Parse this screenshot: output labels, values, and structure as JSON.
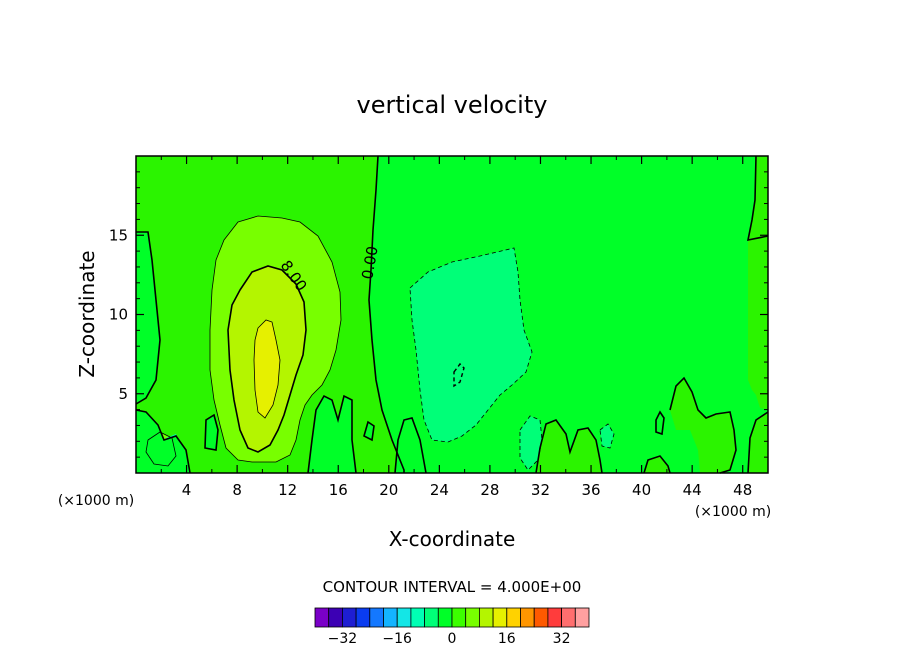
{
  "chart_data": {
    "type": "contour",
    "title": "vertical velocity",
    "xlabel": "X-coordinate",
    "ylabel": "Z-coordinate",
    "x_units_left": "(×1000 m)",
    "x_units_right": "(×1000 m)",
    "xlim": [
      0,
      50
    ],
    "ylim": [
      0,
      20
    ],
    "x_ticks": [
      4,
      8,
      12,
      16,
      20,
      24,
      28,
      32,
      36,
      40,
      44,
      48
    ],
    "y_ticks": [
      5,
      10,
      15
    ],
    "contour_interval_text": "CONTOUR INTERVAL = 4.000E+00",
    "contour_labels": [
      "8.00",
      "0.00"
    ],
    "colorbar": {
      "colors": [
        "#7a00c8",
        "#3c00b4",
        "#1e1ed2",
        "#0a3cf0",
        "#1478ff",
        "#14b4ff",
        "#14e6e6",
        "#00ffb4",
        "#00ff78",
        "#00ff28",
        "#3cff00",
        "#78ff00",
        "#b4f500",
        "#e6f000",
        "#ffd200",
        "#ff9600",
        "#ff5a00",
        "#ff3c3c",
        "#ff6e6e",
        "#ffa0a0"
      ],
      "tick_labels": [
        "−32",
        "−16",
        "0",
        "16",
        "32"
      ],
      "tick_values": [
        -32,
        -16,
        0,
        16,
        32
      ],
      "range": [
        -40,
        40
      ]
    }
  }
}
